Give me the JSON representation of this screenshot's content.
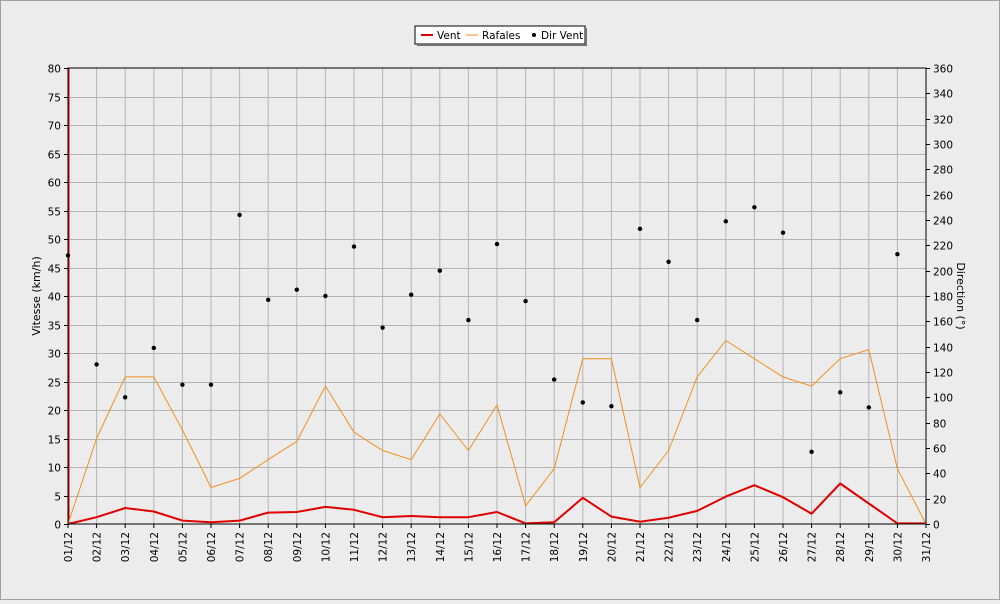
{
  "chart_data": {
    "type": "line",
    "categories": [
      "01/12",
      "02/12",
      "03/12",
      "04/12",
      "05/12",
      "06/12",
      "07/12",
      "08/12",
      "09/12",
      "10/12",
      "11/12",
      "12/12",
      "13/12",
      "14/12",
      "15/12",
      "16/12",
      "17/12",
      "18/12",
      "19/12",
      "20/12",
      "21/12",
      "22/12",
      "23/12",
      "24/12",
      "25/12",
      "26/12",
      "27/12",
      "28/12",
      "29/12",
      "30/12",
      "31/12"
    ],
    "ylabel": "Vitesse (km/h)",
    "ylim": [
      0,
      80
    ],
    "y_ticks": [
      "0",
      "5",
      "10",
      "15",
      "20",
      "25",
      "30",
      "35",
      "40",
      "45",
      "50",
      "55",
      "60",
      "65",
      "70",
      "75",
      "80"
    ],
    "y2label": "Direction (°)",
    "y2lim": [
      0,
      360
    ],
    "y2_ticks": [
      "0",
      "20",
      "40",
      "60",
      "80",
      "100",
      "120",
      "140",
      "160",
      "180",
      "200",
      "220",
      "240",
      "260",
      "280",
      "300",
      "320",
      "340",
      "360"
    ],
    "grid": true,
    "legend_position": "top-center",
    "series": [
      {
        "name": "Vent",
        "axis": "left",
        "kind": "line",
        "color": "#e00000",
        "values": [
          0,
          1.2,
          2.8,
          2.2,
          0.6,
          0.3,
          0.6,
          2.0,
          2.1,
          3.0,
          2.5,
          1.2,
          1.4,
          1.2,
          1.2,
          2.1,
          0.1,
          0.3,
          4.6,
          1.3,
          0.4,
          1.1,
          2.3,
          4.8,
          6.8,
          4.7,
          1.8,
          7.1,
          3.6,
          0.1,
          0.1
        ]
      },
      {
        "name": "Rafales",
        "axis": "left",
        "kind": "line",
        "color": "#f09020",
        "values": [
          0,
          15,
          25.8,
          25.8,
          16.5,
          6.4,
          8,
          11.3,
          14.5,
          24.2,
          16.1,
          12.9,
          11.3,
          19.3,
          12.9,
          20.9,
          3.2,
          9.7,
          29,
          29,
          6.4,
          12.9,
          25.8,
          32.2,
          29,
          25.8,
          24.2,
          29,
          30.6,
          9.7,
          0
        ]
      },
      {
        "name": "Dir Vent",
        "axis": "right",
        "kind": "scatter",
        "color": "#000000",
        "values": [
          212,
          126,
          100,
          139,
          110,
          110,
          244,
          177,
          185,
          180,
          219,
          155,
          181,
          200,
          161,
          221,
          176,
          114,
          96,
          93,
          233,
          207,
          161,
          239,
          250,
          230,
          57,
          104,
          92,
          213,
          null
        ]
      }
    ]
  }
}
